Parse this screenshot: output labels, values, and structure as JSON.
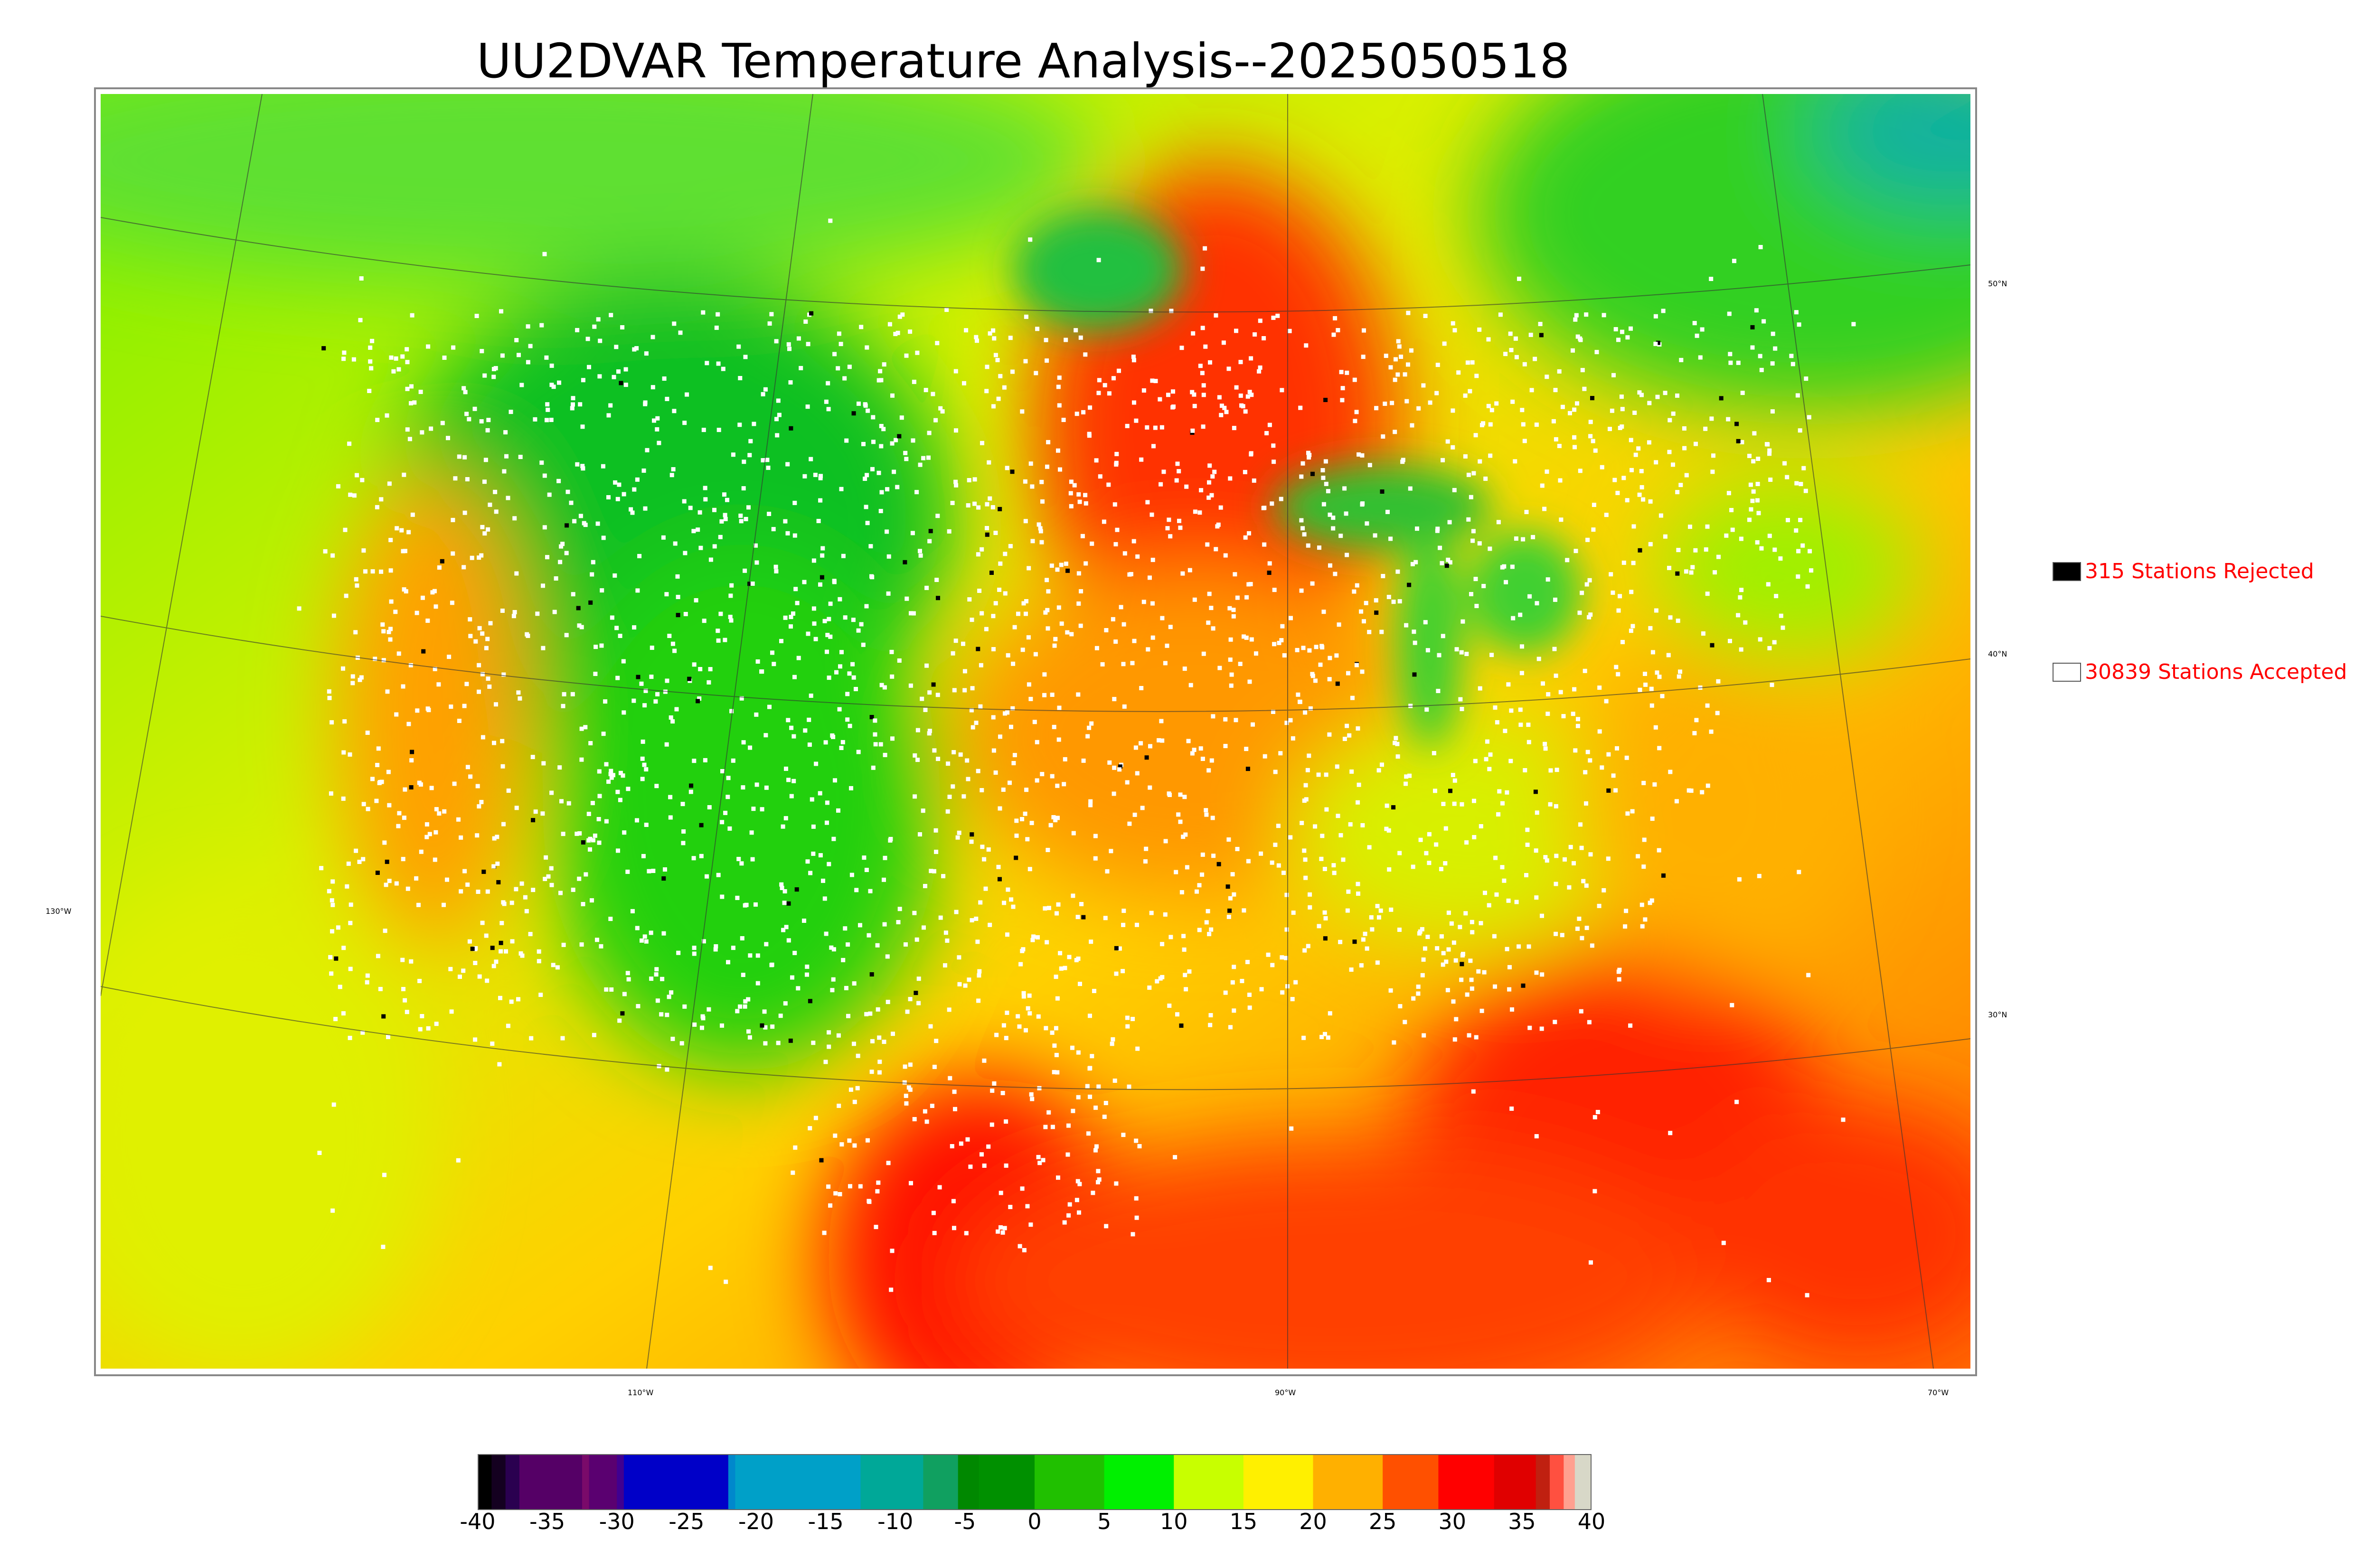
{
  "title": "UU2DVAR Temperature Analysis--2025050518",
  "legend": {
    "rejected": {
      "label": "315 Stations Rejected",
      "color": "#000000"
    },
    "accepted": {
      "label": "30839 Stations Accepted",
      "color": "#ffffff"
    }
  },
  "map": {
    "lat_labels": [
      "50°N",
      "40°N",
      "30°N"
    ],
    "lon_labels": [
      "130°W",
      "110°W",
      "90°W",
      "70°W"
    ],
    "field_colors": {
      "cold": "#00b020",
      "cool": "#18e018",
      "mild": "#c8f000",
      "warm": "#ffc000",
      "hot": "#ff7800",
      "very_hot": "#ff1800"
    }
  },
  "colorbar": {
    "ticks": [
      "-40",
      "-35",
      "-30",
      "-25",
      "-20",
      "-15",
      "-10",
      "-5",
      "0",
      "5",
      "10",
      "15",
      "20",
      "25",
      "30",
      "35",
      "40"
    ],
    "min": -40,
    "max": 40,
    "segments": [
      {
        "from": -40,
        "to": -39,
        "color": "#000000"
      },
      {
        "from": -39,
        "to": -38,
        "color": "#140020"
      },
      {
        "from": -38,
        "to": -37,
        "color": "#2a0050"
      },
      {
        "from": -37,
        "to": -32.5,
        "color": "#550066"
      },
      {
        "from": -32.5,
        "to": -32,
        "color": "#7a0a6a"
      },
      {
        "from": -32,
        "to": -30,
        "color": "#5a0070"
      },
      {
        "from": -30,
        "to": -29.5,
        "color": "#400090"
      },
      {
        "from": -29.5,
        "to": -22,
        "color": "#0000c8"
      },
      {
        "from": -22,
        "to": -21.5,
        "color": "#0088cc"
      },
      {
        "from": -21.5,
        "to": -12.5,
        "color": "#00a0c8"
      },
      {
        "from": -12.5,
        "to": -8,
        "color": "#00a898"
      },
      {
        "from": -8,
        "to": -5.5,
        "color": "#10a060"
      },
      {
        "from": -5.5,
        "to": -4,
        "color": "#008800"
      },
      {
        "from": -4,
        "to": 0,
        "color": "#009000"
      },
      {
        "from": 0,
        "to": 5,
        "color": "#20c000"
      },
      {
        "from": 5,
        "to": 10,
        "color": "#00f000"
      },
      {
        "from": 10,
        "to": 15,
        "color": "#c8ff00"
      },
      {
        "from": 15,
        "to": 20,
        "color": "#fff000"
      },
      {
        "from": 20,
        "to": 25,
        "color": "#ffb000"
      },
      {
        "from": 25,
        "to": 29,
        "color": "#ff5000"
      },
      {
        "from": 29,
        "to": 33,
        "color": "#ff0000"
      },
      {
        "from": 33,
        "to": 36,
        "color": "#e00000"
      },
      {
        "from": 36,
        "to": 37,
        "color": "#c02010"
      },
      {
        "from": 37,
        "to": 38,
        "color": "#ff5040"
      },
      {
        "from": 38,
        "to": 38.8,
        "color": "#ffa090"
      },
      {
        "from": 38.8,
        "to": 40,
        "color": "#d8d8c8"
      }
    ]
  }
}
